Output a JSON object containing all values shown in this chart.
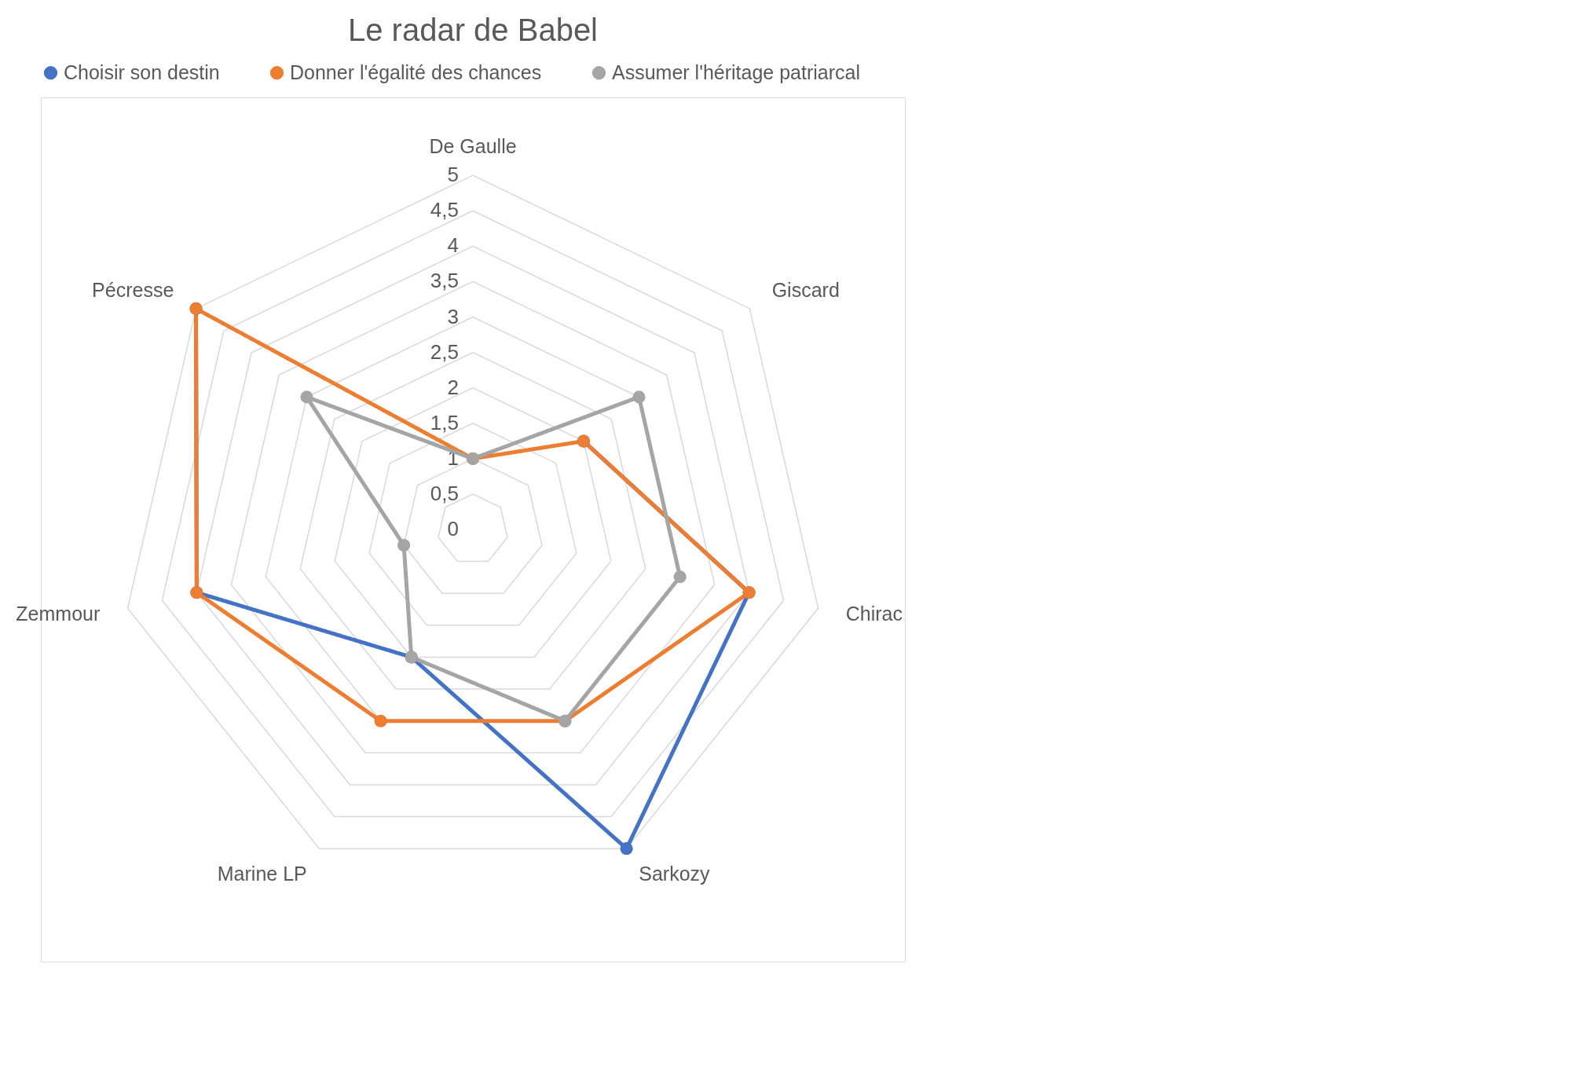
{
  "chart_data": {
    "type": "radar",
    "title": "Le radar de Babel",
    "categories": [
      "De Gaulle",
      "Giscard",
      "Chirac",
      "Sarkozy",
      "Marine LP",
      "Zemmour",
      "Pécresse"
    ],
    "series": [
      {
        "name": "Choisir son destin",
        "color": "#4472c4",
        "values": [
          null,
          2,
          4,
          5,
          2,
          4,
          5
        ]
      },
      {
        "name": "Donner l'égalité des chances",
        "color": "#ed7d31",
        "values": [
          1,
          2,
          4,
          3,
          3,
          4,
          5
        ]
      },
      {
        "name": "Assumer l'héritage patriarcal",
        "color": "#a5a5a5",
        "values": [
          1,
          3,
          3,
          3,
          2,
          1,
          3
        ]
      }
    ],
    "ylim": [
      0,
      5
    ],
    "yticks": [
      0,
      {
        "value": 0.5,
        "label": "0,5"
      },
      1,
      {
        "value": 1.5,
        "label": "1,5"
      },
      2,
      {
        "value": 2.5,
        "label": "2,5"
      },
      3,
      {
        "value": 3.5,
        "label": "3,5"
      },
      4,
      {
        "value": 4.5,
        "label": "4,5"
      },
      5
    ],
    "grid": true,
    "legend": "top",
    "marker": "circle"
  }
}
